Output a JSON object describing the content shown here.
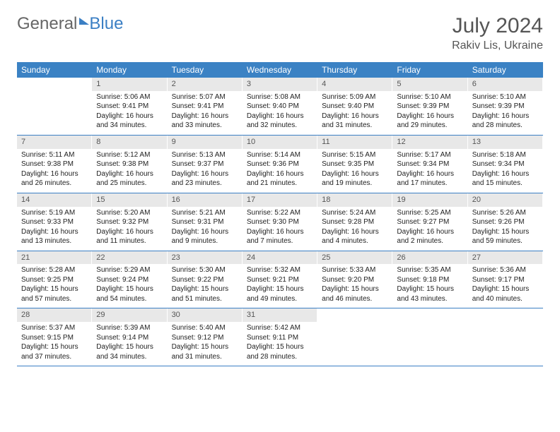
{
  "logo": {
    "text1": "General",
    "text2": "Blue"
  },
  "title": "July 2024",
  "location": "Rakiv Lis, Ukraine",
  "header_bg": "#3b82c4",
  "divider_color": "#3b7fc4",
  "daynum_bg": "#e8e8e8",
  "page_bg": "#ffffff",
  "day_names": [
    "Sunday",
    "Monday",
    "Tuesday",
    "Wednesday",
    "Thursday",
    "Friday",
    "Saturday"
  ],
  "weeks": [
    [
      {
        "n": "",
        "sr": "",
        "ss": "",
        "dl1": "",
        "dl2": ""
      },
      {
        "n": "1",
        "sr": "Sunrise: 5:06 AM",
        "ss": "Sunset: 9:41 PM",
        "dl1": "Daylight: 16 hours",
        "dl2": "and 34 minutes."
      },
      {
        "n": "2",
        "sr": "Sunrise: 5:07 AM",
        "ss": "Sunset: 9:41 PM",
        "dl1": "Daylight: 16 hours",
        "dl2": "and 33 minutes."
      },
      {
        "n": "3",
        "sr": "Sunrise: 5:08 AM",
        "ss": "Sunset: 9:40 PM",
        "dl1": "Daylight: 16 hours",
        "dl2": "and 32 minutes."
      },
      {
        "n": "4",
        "sr": "Sunrise: 5:09 AM",
        "ss": "Sunset: 9:40 PM",
        "dl1": "Daylight: 16 hours",
        "dl2": "and 31 minutes."
      },
      {
        "n": "5",
        "sr": "Sunrise: 5:10 AM",
        "ss": "Sunset: 9:39 PM",
        "dl1": "Daylight: 16 hours",
        "dl2": "and 29 minutes."
      },
      {
        "n": "6",
        "sr": "Sunrise: 5:10 AM",
        "ss": "Sunset: 9:39 PM",
        "dl1": "Daylight: 16 hours",
        "dl2": "and 28 minutes."
      }
    ],
    [
      {
        "n": "7",
        "sr": "Sunrise: 5:11 AM",
        "ss": "Sunset: 9:38 PM",
        "dl1": "Daylight: 16 hours",
        "dl2": "and 26 minutes."
      },
      {
        "n": "8",
        "sr": "Sunrise: 5:12 AM",
        "ss": "Sunset: 9:38 PM",
        "dl1": "Daylight: 16 hours",
        "dl2": "and 25 minutes."
      },
      {
        "n": "9",
        "sr": "Sunrise: 5:13 AM",
        "ss": "Sunset: 9:37 PM",
        "dl1": "Daylight: 16 hours",
        "dl2": "and 23 minutes."
      },
      {
        "n": "10",
        "sr": "Sunrise: 5:14 AM",
        "ss": "Sunset: 9:36 PM",
        "dl1": "Daylight: 16 hours",
        "dl2": "and 21 minutes."
      },
      {
        "n": "11",
        "sr": "Sunrise: 5:15 AM",
        "ss": "Sunset: 9:35 PM",
        "dl1": "Daylight: 16 hours",
        "dl2": "and 19 minutes."
      },
      {
        "n": "12",
        "sr": "Sunrise: 5:17 AM",
        "ss": "Sunset: 9:34 PM",
        "dl1": "Daylight: 16 hours",
        "dl2": "and 17 minutes."
      },
      {
        "n": "13",
        "sr": "Sunrise: 5:18 AM",
        "ss": "Sunset: 9:34 PM",
        "dl1": "Daylight: 16 hours",
        "dl2": "and 15 minutes."
      }
    ],
    [
      {
        "n": "14",
        "sr": "Sunrise: 5:19 AM",
        "ss": "Sunset: 9:33 PM",
        "dl1": "Daylight: 16 hours",
        "dl2": "and 13 minutes."
      },
      {
        "n": "15",
        "sr": "Sunrise: 5:20 AM",
        "ss": "Sunset: 9:32 PM",
        "dl1": "Daylight: 16 hours",
        "dl2": "and 11 minutes."
      },
      {
        "n": "16",
        "sr": "Sunrise: 5:21 AM",
        "ss": "Sunset: 9:31 PM",
        "dl1": "Daylight: 16 hours",
        "dl2": "and 9 minutes."
      },
      {
        "n": "17",
        "sr": "Sunrise: 5:22 AM",
        "ss": "Sunset: 9:30 PM",
        "dl1": "Daylight: 16 hours",
        "dl2": "and 7 minutes."
      },
      {
        "n": "18",
        "sr": "Sunrise: 5:24 AM",
        "ss": "Sunset: 9:28 PM",
        "dl1": "Daylight: 16 hours",
        "dl2": "and 4 minutes."
      },
      {
        "n": "19",
        "sr": "Sunrise: 5:25 AM",
        "ss": "Sunset: 9:27 PM",
        "dl1": "Daylight: 16 hours",
        "dl2": "and 2 minutes."
      },
      {
        "n": "20",
        "sr": "Sunrise: 5:26 AM",
        "ss": "Sunset: 9:26 PM",
        "dl1": "Daylight: 15 hours",
        "dl2": "and 59 minutes."
      }
    ],
    [
      {
        "n": "21",
        "sr": "Sunrise: 5:28 AM",
        "ss": "Sunset: 9:25 PM",
        "dl1": "Daylight: 15 hours",
        "dl2": "and 57 minutes."
      },
      {
        "n": "22",
        "sr": "Sunrise: 5:29 AM",
        "ss": "Sunset: 9:24 PM",
        "dl1": "Daylight: 15 hours",
        "dl2": "and 54 minutes."
      },
      {
        "n": "23",
        "sr": "Sunrise: 5:30 AM",
        "ss": "Sunset: 9:22 PM",
        "dl1": "Daylight: 15 hours",
        "dl2": "and 51 minutes."
      },
      {
        "n": "24",
        "sr": "Sunrise: 5:32 AM",
        "ss": "Sunset: 9:21 PM",
        "dl1": "Daylight: 15 hours",
        "dl2": "and 49 minutes."
      },
      {
        "n": "25",
        "sr": "Sunrise: 5:33 AM",
        "ss": "Sunset: 9:20 PM",
        "dl1": "Daylight: 15 hours",
        "dl2": "and 46 minutes."
      },
      {
        "n": "26",
        "sr": "Sunrise: 5:35 AM",
        "ss": "Sunset: 9:18 PM",
        "dl1": "Daylight: 15 hours",
        "dl2": "and 43 minutes."
      },
      {
        "n": "27",
        "sr": "Sunrise: 5:36 AM",
        "ss": "Sunset: 9:17 PM",
        "dl1": "Daylight: 15 hours",
        "dl2": "and 40 minutes."
      }
    ],
    [
      {
        "n": "28",
        "sr": "Sunrise: 5:37 AM",
        "ss": "Sunset: 9:15 PM",
        "dl1": "Daylight: 15 hours",
        "dl2": "and 37 minutes."
      },
      {
        "n": "29",
        "sr": "Sunrise: 5:39 AM",
        "ss": "Sunset: 9:14 PM",
        "dl1": "Daylight: 15 hours",
        "dl2": "and 34 minutes."
      },
      {
        "n": "30",
        "sr": "Sunrise: 5:40 AM",
        "ss": "Sunset: 9:12 PM",
        "dl1": "Daylight: 15 hours",
        "dl2": "and 31 minutes."
      },
      {
        "n": "31",
        "sr": "Sunrise: 5:42 AM",
        "ss": "Sunset: 9:11 PM",
        "dl1": "Daylight: 15 hours",
        "dl2": "and 28 minutes."
      },
      {
        "n": "",
        "sr": "",
        "ss": "",
        "dl1": "",
        "dl2": ""
      },
      {
        "n": "",
        "sr": "",
        "ss": "",
        "dl1": "",
        "dl2": ""
      },
      {
        "n": "",
        "sr": "",
        "ss": "",
        "dl1": "",
        "dl2": ""
      }
    ]
  ]
}
